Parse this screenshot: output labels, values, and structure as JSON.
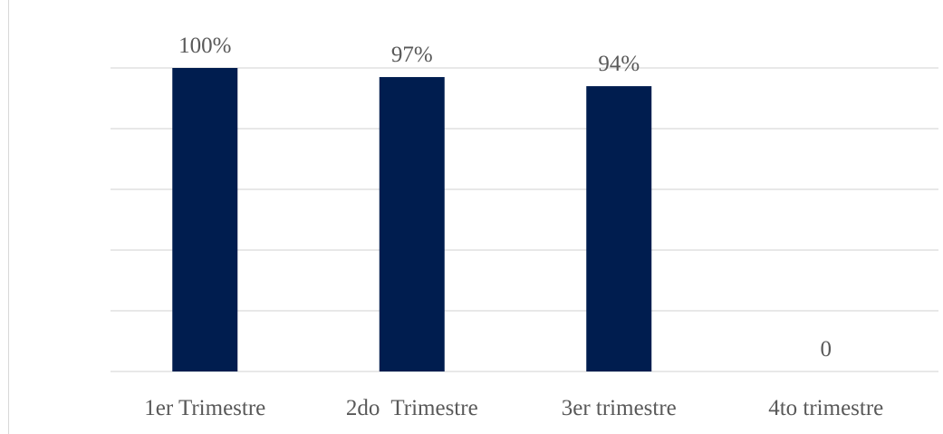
{
  "chart_data": {
    "type": "bar",
    "categories": [
      "1er Trimestre",
      "2do  Trimestre",
      "3er trimestre",
      "4to trimestre"
    ],
    "values": [
      100,
      97,
      94,
      0
    ],
    "data_labels": [
      "100%",
      "97%",
      "94%",
      "0"
    ],
    "ylim": [
      0,
      100
    ],
    "grid": true,
    "legend": "none",
    "colors": {
      "bar": "#001d4f",
      "grid": "#d9d9d9",
      "text": "#595959"
    }
  }
}
